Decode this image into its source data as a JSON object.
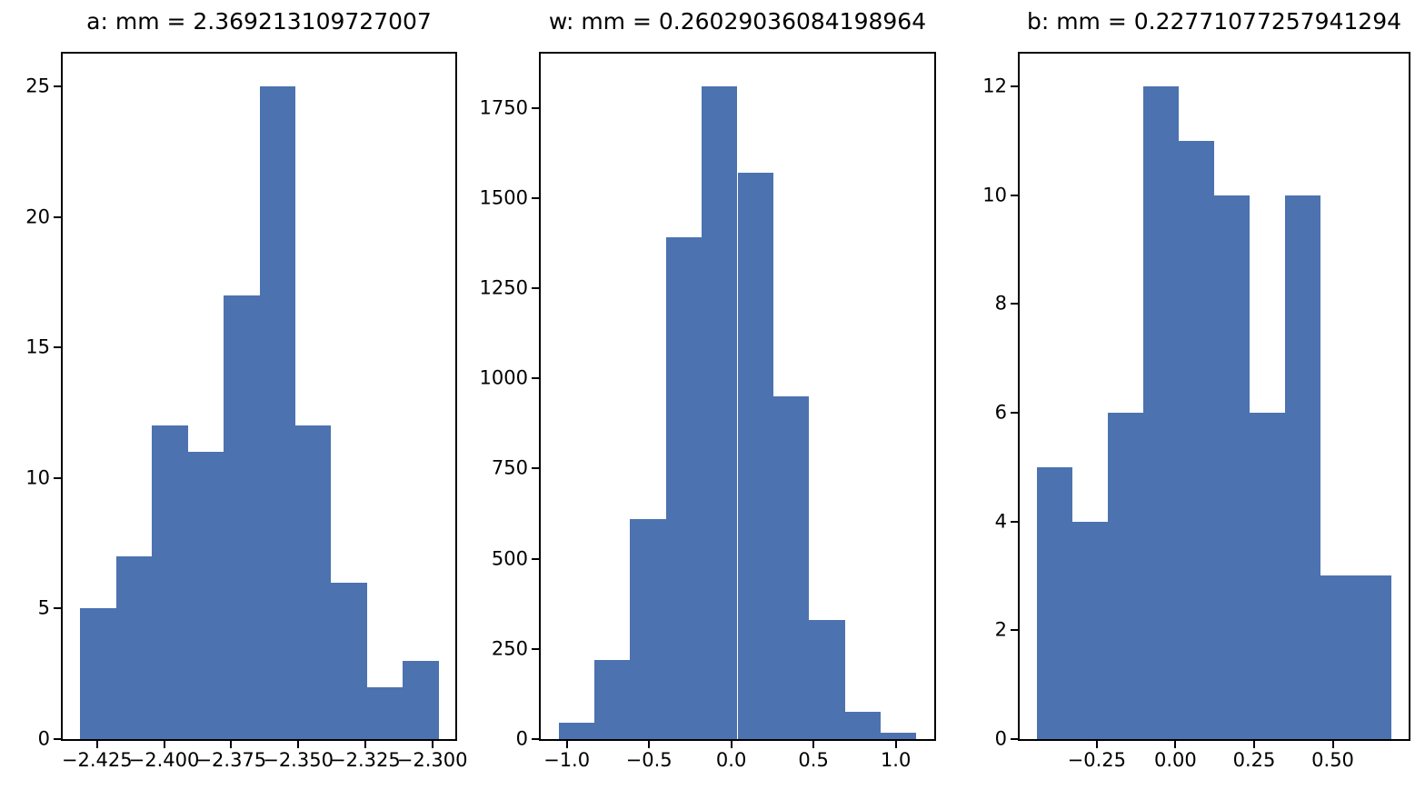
{
  "figure": {
    "background_color": "#ffffff",
    "bar_color": "#4C72B0",
    "spine_color": "#000000",
    "text_color": "#000000"
  },
  "chart_data": [
    {
      "type": "bar",
      "subtype": "histogram",
      "title": "a: mm = 2.369213109727007",
      "bins_start": -2.4312,
      "bins_end": -2.2976,
      "values": [
        5,
        7,
        12,
        11,
        17,
        25,
        12,
        6,
        2,
        3
      ],
      "xlim": [
        -2.4378,
        -2.2914
      ],
      "ylim": [
        0,
        26.25
      ],
      "grid": false,
      "legend": null,
      "xticks": {
        "values": [
          -2.425,
          -2.4,
          -2.375,
          -2.35,
          -2.325,
          -2.3
        ],
        "labels": [
          "−2.425",
          "−2.400",
          "−2.375",
          "−2.350",
          "−2.325",
          "−2.300"
        ]
      },
      "yticks": {
        "values": [
          0,
          5,
          10,
          15,
          20,
          25
        ],
        "labels": [
          "0",
          "5",
          "10",
          "15",
          "20",
          "25"
        ]
      }
    },
    {
      "type": "bar",
      "subtype": "histogram",
      "title": "w: mm = 0.26029036084198964",
      "bins_start": -1.049,
      "bins_end": 1.125,
      "values": [
        45,
        220,
        610,
        1390,
        1810,
        1570,
        950,
        330,
        75,
        18
      ],
      "xlim": [
        -1.158,
        1.234
      ],
      "ylim": [
        0,
        1900
      ],
      "grid": false,
      "legend": null,
      "xticks": {
        "values": [
          -1.0,
          -0.5,
          0.0,
          0.5,
          1.0
        ],
        "labels": [
          "−1.0",
          "−0.5",
          "0.0",
          "0.5",
          "1.0"
        ]
      },
      "yticks": {
        "values": [
          0,
          250,
          500,
          750,
          1000,
          1250,
          1500,
          1750
        ],
        "labels": [
          "0",
          "250",
          "500",
          "750",
          "1000",
          "1250",
          "1500",
          "1750"
        ]
      }
    },
    {
      "type": "bar",
      "subtype": "histogram",
      "title": "b: mm = 0.22771077257941294",
      "bins_start": -0.4387,
      "bins_end": 0.685,
      "values": [
        5,
        4,
        6,
        12,
        11,
        10,
        6,
        10,
        3,
        3
      ],
      "xlim": [
        -0.495,
        0.741
      ],
      "ylim": [
        0,
        12.6
      ],
      "grid": false,
      "legend": null,
      "xticks": {
        "values": [
          -0.25,
          0.0,
          0.25,
          0.5
        ],
        "labels": [
          "−0.25",
          "0.00",
          "0.25",
          "0.50"
        ]
      },
      "yticks": {
        "values": [
          0,
          2,
          4,
          6,
          8,
          10,
          12
        ],
        "labels": [
          "0",
          "2",
          "4",
          "6",
          "8",
          "10",
          "12"
        ]
      }
    }
  ]
}
